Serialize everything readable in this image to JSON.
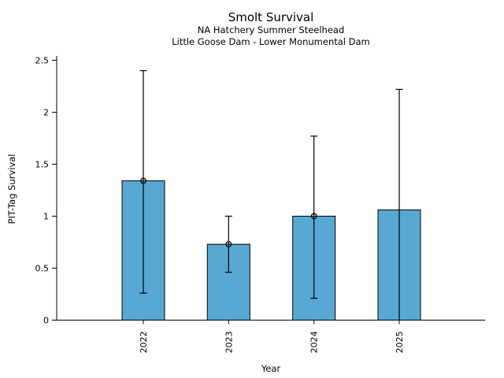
{
  "window": {
    "background_color": "#ffffff"
  },
  "chart_data": {
    "type": "bar",
    "title": "Smolt Survival",
    "subtitle_line1": "NA Hatchery Summer Steelhead",
    "subtitle_line2": "Little Goose Dam - Lower Monumental Dam",
    "xlabel": "Year",
    "ylabel": "PIT-Tag Survival",
    "categories": [
      "2022",
      "2023",
      "2024",
      "2025"
    ],
    "series": [
      {
        "name": "PIT-Tag Survival",
        "values": [
          1.34,
          0.73,
          1.0,
          1.06
        ],
        "error_low": [
          0.26,
          0.46,
          0.21,
          0.0
        ],
        "error_high": [
          2.4,
          1.0,
          1.77,
          2.22
        ],
        "point_marker": [
          true,
          true,
          true,
          false
        ]
      }
    ],
    "ylim": [
      0,
      2.54
    ],
    "ytick_values": [
      0,
      0.5,
      1,
      1.5,
      2,
      2.5
    ],
    "ytick_labels": [
      "0",
      "0.5",
      "1",
      "1.5",
      "2",
      "2.5"
    ],
    "x_tick_label_rotation_deg": 90,
    "grid": false,
    "legend": "none",
    "bar_color": "#57a9d4",
    "bar_edge_color": "#000000",
    "error_bar_color": "#000000",
    "marker_style": "open-circle",
    "text_color": "#000000"
  }
}
